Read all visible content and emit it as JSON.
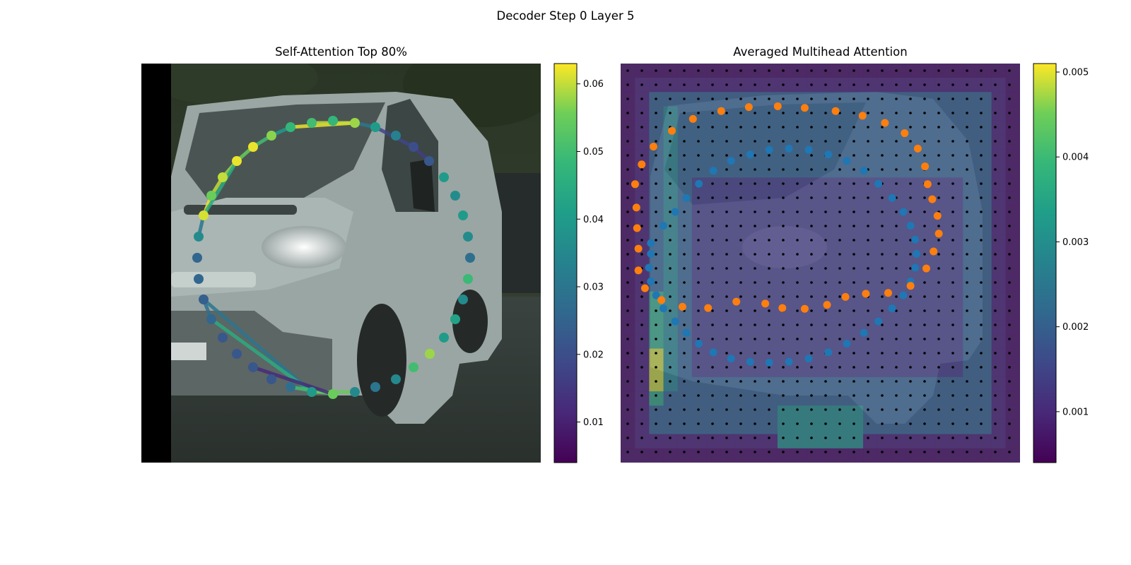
{
  "figure": {
    "suptitle": "Decoder Step 0 Layer 5"
  },
  "chart_data": [
    {
      "type": "scatter",
      "title": "Self-Attention Top 80%",
      "background": "photo of a white van on a street",
      "colormap": "viridis",
      "colorbar": {
        "ylim": [
          0.004,
          0.063
        ],
        "ticks": [
          "0.01",
          "0.02",
          "0.03",
          "0.04",
          "0.05",
          "0.06"
        ],
        "tick_values": [
          0.01,
          0.02,
          0.03,
          0.04,
          0.05,
          0.06
        ]
      },
      "points": [
        {
          "x": 471,
          "y": 558,
          "v": 0.055
        },
        {
          "x": 502,
          "y": 555,
          "v": 0.035
        },
        {
          "x": 531,
          "y": 548,
          "v": 0.03
        },
        {
          "x": 560,
          "y": 537,
          "v": 0.035
        },
        {
          "x": 585,
          "y": 520,
          "v": 0.05
        },
        {
          "x": 608,
          "y": 501,
          "v": 0.058
        },
        {
          "x": 628,
          "y": 478,
          "v": 0.04
        },
        {
          "x": 644,
          "y": 452,
          "v": 0.042
        },
        {
          "x": 655,
          "y": 424,
          "v": 0.036
        },
        {
          "x": 662,
          "y": 395,
          "v": 0.049
        },
        {
          "x": 665,
          "y": 365,
          "v": 0.028
        },
        {
          "x": 662,
          "y": 335,
          "v": 0.036
        },
        {
          "x": 655,
          "y": 305,
          "v": 0.04
        },
        {
          "x": 644,
          "y": 277,
          "v": 0.036
        },
        {
          "x": 628,
          "y": 251,
          "v": 0.04
        },
        {
          "x": 607,
          "y": 228,
          "v": 0.022
        },
        {
          "x": 585,
          "y": 208,
          "v": 0.02
        },
        {
          "x": 560,
          "y": 192,
          "v": 0.033
        },
        {
          "x": 531,
          "y": 180,
          "v": 0.04
        },
        {
          "x": 502,
          "y": 174,
          "v": 0.058
        },
        {
          "x": 471,
          "y": 171,
          "v": 0.048
        },
        {
          "x": 441,
          "y": 174,
          "v": 0.05
        },
        {
          "x": 411,
          "y": 180,
          "v": 0.048
        },
        {
          "x": 384,
          "y": 192,
          "v": 0.057
        },
        {
          "x": 358,
          "y": 208,
          "v": 0.062
        },
        {
          "x": 335,
          "y": 228,
          "v": 0.062
        },
        {
          "x": 315,
          "y": 251,
          "v": 0.06
        },
        {
          "x": 299,
          "y": 277,
          "v": 0.055
        },
        {
          "x": 288,
          "y": 305,
          "v": 0.061
        },
        {
          "x": 281,
          "y": 335,
          "v": 0.036
        },
        {
          "x": 279,
          "y": 365,
          "v": 0.026
        },
        {
          "x": 281,
          "y": 395,
          "v": 0.026
        },
        {
          "x": 288,
          "y": 424,
          "v": 0.024
        },
        {
          "x": 299,
          "y": 452,
          "v": 0.026
        },
        {
          "x": 315,
          "y": 478,
          "v": 0.022
        },
        {
          "x": 335,
          "y": 501,
          "v": 0.022
        },
        {
          "x": 358,
          "y": 520,
          "v": 0.022
        },
        {
          "x": 384,
          "y": 537,
          "v": 0.022
        },
        {
          "x": 411,
          "y": 548,
          "v": 0.028
        },
        {
          "x": 441,
          "y": 555,
          "v": 0.04
        }
      ],
      "edges": [
        {
          "from": [
            288,
            305
          ],
          "to": [
            299,
            277
          ],
          "v": 0.062
        },
        {
          "from": [
            299,
            277
          ],
          "to": [
            315,
            251
          ],
          "v": 0.06
        },
        {
          "from": [
            315,
            251
          ],
          "to": [
            335,
            228
          ],
          "v": 0.058
        },
        {
          "from": [
            335,
            228
          ],
          "to": [
            358,
            208
          ],
          "v": 0.055
        },
        {
          "from": [
            358,
            208
          ],
          "to": [
            384,
            192
          ],
          "v": 0.05
        },
        {
          "from": [
            384,
            192
          ],
          "to": [
            411,
            180
          ],
          "v": 0.04
        },
        {
          "from": [
            411,
            180
          ],
          "to": [
            502,
            174
          ],
          "v": 0.062
        },
        {
          "from": [
            441,
            174
          ],
          "to": [
            502,
            174
          ],
          "v": 0.06
        },
        {
          "from": [
            502,
            174
          ],
          "to": [
            531,
            180
          ],
          "v": 0.03
        },
        {
          "from": [
            531,
            180
          ],
          "to": [
            585,
            208
          ],
          "v": 0.018
        },
        {
          "from": [
            585,
            208
          ],
          "to": [
            607,
            228
          ],
          "v": 0.016
        },
        {
          "from": [
            288,
            305
          ],
          "to": [
            335,
            228
          ],
          "v": 0.045
        },
        {
          "from": [
            288,
            424
          ],
          "to": [
            441,
            555
          ],
          "v": 0.03
        },
        {
          "from": [
            299,
            452
          ],
          "to": [
            441,
            555
          ],
          "v": 0.045
        },
        {
          "from": [
            411,
            548
          ],
          "to": [
            471,
            558
          ],
          "v": 0.05
        },
        {
          "from": [
            441,
            555
          ],
          "to": [
            502,
            555
          ],
          "v": 0.055
        },
        {
          "from": [
            358,
            520
          ],
          "to": [
            471,
            558
          ],
          "v": 0.012
        },
        {
          "from": [
            281,
            335
          ],
          "to": [
            288,
            305
          ],
          "v": 0.03
        },
        {
          "from": [
            288,
            424
          ],
          "to": [
            299,
            452
          ],
          "v": 0.028
        }
      ]
    },
    {
      "type": "heatmap",
      "title": "Averaged Multihead Attention",
      "background": "photo of a white van on a street",
      "colormap": "viridis",
      "colorbar": {
        "ylim": [
          0.0004,
          0.0051
        ],
        "ticks": [
          "0.001",
          "0.002",
          "0.003",
          "0.004",
          "0.005"
        ],
        "tick_values": [
          0.001,
          0.002,
          0.003,
          0.004,
          0.005
        ]
      },
      "blue_points": [
        [
          924,
          554
        ],
        [
          943,
          510
        ],
        [
          961,
          475
        ],
        [
          978,
          440
        ],
        [
          997,
          404
        ],
        [
          1019,
          371
        ],
        [
          1046,
          346
        ],
        [
          1075,
          330
        ],
        [
          1104,
          318
        ],
        [
          1134,
          315
        ],
        [
          1164,
          318
        ],
        [
          1194,
          330
        ],
        [
          1222,
          346
        ],
        [
          1248,
          371
        ],
        [
          1270,
          404
        ],
        [
          1291,
          440
        ],
        [
          1308,
          475
        ],
        [
          1319,
          510
        ],
        [
          1326,
          545
        ],
        [
          1328,
          581
        ],
        [
          1326,
          616
        ],
        [
          1319,
          651
        ],
        [
          1308,
          686
        ],
        [
          1291,
          719
        ],
        [
          1270,
          752
        ],
        [
          1248,
          781
        ],
        [
          1222,
          808
        ],
        [
          1194,
          830
        ],
        [
          1164,
          846
        ],
        [
          1134,
          854
        ],
        [
          1104,
          856
        ],
        [
          1075,
          854
        ],
        [
          1046,
          846
        ],
        [
          1019,
          830
        ],
        [
          997,
          808
        ],
        [
          978,
          781
        ],
        [
          961,
          752
        ],
        [
          943,
          719
        ],
        [
          932,
          686
        ],
        [
          924,
          651
        ],
        [
          921,
          616
        ],
        [
          924,
          581
        ]
      ],
      "orange_points": [
        [
          900,
          405
        ],
        [
          910,
          355
        ],
        [
          928,
          310
        ],
        [
          956,
          270
        ],
        [
          988,
          240
        ],
        [
          1031,
          220
        ],
        [
          1073,
          210
        ],
        [
          1117,
          208
        ],
        [
          1158,
          212
        ],
        [
          1205,
          220
        ],
        [
          1246,
          232
        ],
        [
          1280,
          250
        ],
        [
          1310,
          276
        ],
        [
          1330,
          315
        ],
        [
          1341,
          360
        ],
        [
          1345,
          405
        ],
        [
          1352,
          443
        ],
        [
          1360,
          485
        ],
        [
          1362,
          530
        ],
        [
          1354,
          575
        ],
        [
          1343,
          618
        ],
        [
          1319,
          662
        ],
        [
          1285,
          680
        ],
        [
          1251,
          682
        ],
        [
          1220,
          690
        ],
        [
          1192,
          710
        ],
        [
          1158,
          720
        ],
        [
          1124,
          718
        ],
        [
          1098,
          707
        ],
        [
          1054,
          702
        ],
        [
          1011,
          718
        ],
        [
          972,
          715
        ],
        [
          940,
          698
        ],
        [
          915,
          668
        ],
        [
          905,
          623
        ],
        [
          905,
          568
        ],
        [
          903,
          516
        ],
        [
          902,
          464
        ]
      ]
    }
  ]
}
